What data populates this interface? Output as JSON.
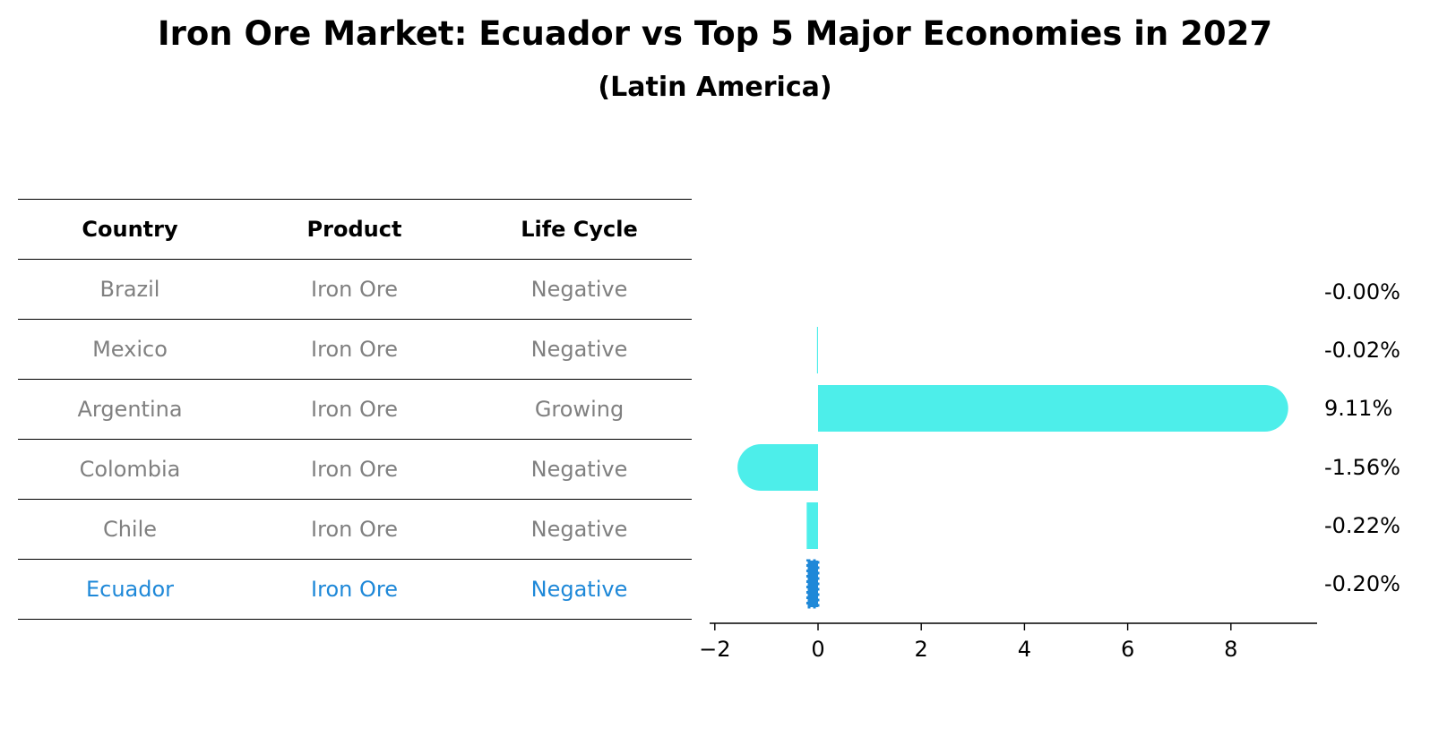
{
  "title": "Iron Ore Market: Ecuador vs Top 5 Major Economies in 2027",
  "subtitle": "(Latin America)",
  "table": {
    "headers": [
      "Country",
      "Product",
      "Life Cycle"
    ],
    "rows": [
      {
        "country": "Brazil",
        "product": "Iron Ore",
        "life_cycle": "Negative",
        "highlight": false
      },
      {
        "country": "Mexico",
        "product": "Iron Ore",
        "life_cycle": "Negative",
        "highlight": false
      },
      {
        "country": "Argentina",
        "product": "Iron Ore",
        "life_cycle": "Growing",
        "highlight": false
      },
      {
        "country": "Colombia",
        "product": "Iron Ore",
        "life_cycle": "Negative",
        "highlight": false
      },
      {
        "country": "Chile",
        "product": "Iron Ore",
        "life_cycle": "Negative",
        "highlight": false
      },
      {
        "country": "Ecuador",
        "product": "Iron Ore",
        "life_cycle": "Negative",
        "highlight": true
      }
    ]
  },
  "colors": {
    "bar": "#4deeea",
    "highlight": "#1e88d8",
    "muted_text": "#808080"
  },
  "chart_data": {
    "type": "bar",
    "orientation": "horizontal",
    "title": "Iron Ore Market: Ecuador vs Top 5 Major Economies in 2027",
    "subtitle": "(Latin America)",
    "categories": [
      "Brazil",
      "Mexico",
      "Argentina",
      "Colombia",
      "Chile",
      "Ecuador"
    ],
    "values": [
      -0.0,
      -0.02,
      9.11,
      -1.56,
      -0.22,
      -0.2
    ],
    "value_labels": [
      "-0.00%",
      "-0.02%",
      "9.11%",
      "-1.56%",
      "-0.22%",
      "-0.20%"
    ],
    "xlim": [
      -2.1,
      9.6
    ],
    "xticks": [
      -2,
      0,
      2,
      4,
      6,
      8
    ],
    "xtick_labels": [
      "−2",
      "0",
      "2",
      "4",
      "6",
      "8"
    ],
    "xlabel": "",
    "ylabel": "",
    "grid": false,
    "legend": "none",
    "highlight_category": "Ecuador"
  }
}
